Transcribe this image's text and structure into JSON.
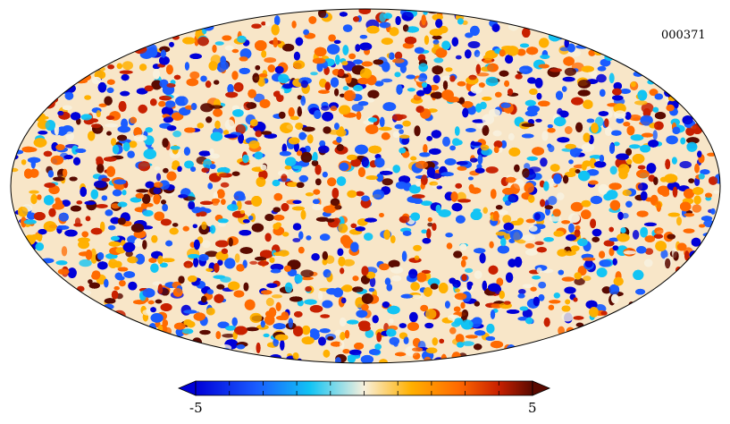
{
  "map": {
    "id_label": "000371",
    "projection": "mollweide",
    "value_range": [
      -5,
      5
    ]
  },
  "colorbar": {
    "min_label": "-5",
    "max_label": "5",
    "colors": [
      "#0000d8",
      "#1a5cff",
      "#12c4f4",
      "#f8f0dc",
      "#ffb000",
      "#ff6a00",
      "#c82000",
      "#5a0a00"
    ]
  }
}
